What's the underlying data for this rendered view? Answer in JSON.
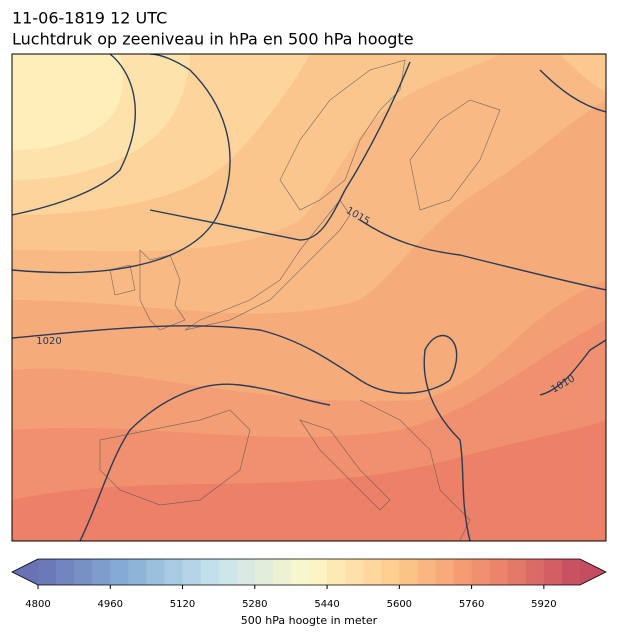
{
  "title": "11-06-1819 12 UTC",
  "subtitle": "Luchtdruk op zeeniveau in hPa en 500 hPa hoogte",
  "isobar_labels": [
    1015,
    1020,
    1010
  ],
  "colorbar": {
    "label": "500 hPa hoogte in meter",
    "range": [
      4800,
      6000
    ],
    "ticks": [
      4800,
      4960,
      5120,
      5280,
      5440,
      5600,
      5760,
      5920
    ],
    "bands": 30,
    "colormap": [
      "#6872b4",
      "#88b0d6",
      "#c8e4ee",
      "#fcf8c8",
      "#fdc98a",
      "#f08a6c",
      "#c44c60"
    ]
  }
}
